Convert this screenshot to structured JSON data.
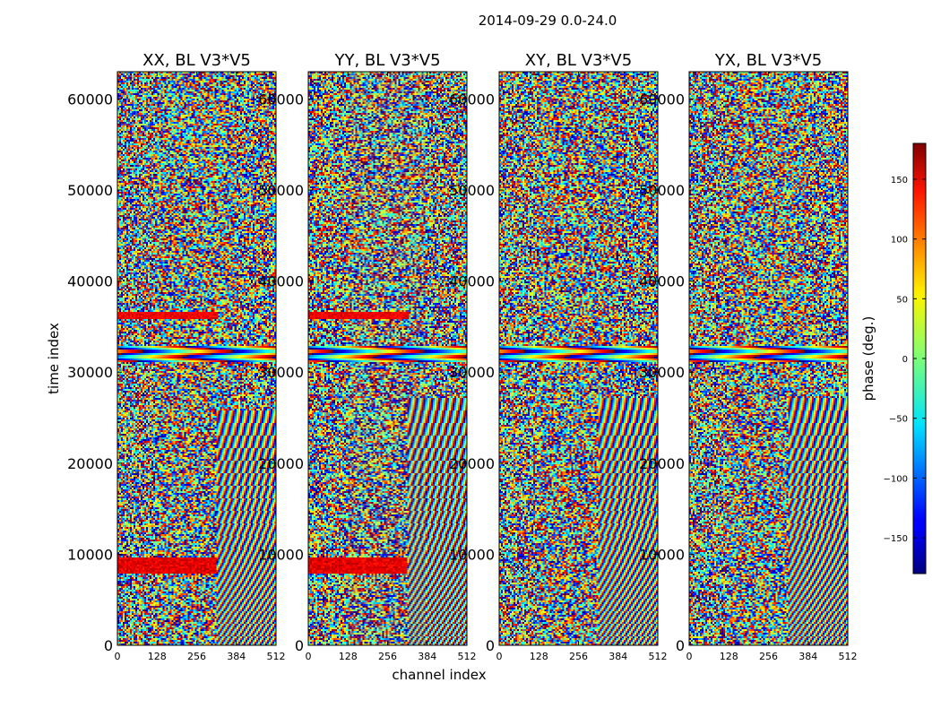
{
  "chart_data": {
    "type": "heatmap",
    "title": "2014-09-29 0.0-24.0",
    "xlabel": "channel index",
    "ylabel": "time index",
    "xlim": [
      0,
      512
    ],
    "ylim": [
      0,
      63000
    ],
    "xticks": [
      0,
      128,
      256,
      384,
      512
    ],
    "yticks": [
      0,
      10000,
      20000,
      30000,
      40000,
      50000,
      60000
    ],
    "panels": [
      {
        "title": "XX, BL V3*V5",
        "polarization": "XX"
      },
      {
        "title": "YY, BL V3*V5",
        "polarization": "YY"
      },
      {
        "title": "XY, BL V3*V5",
        "polarization": "XY"
      },
      {
        "title": "YX, BL V3*V5",
        "polarization": "YX"
      }
    ],
    "colorbar": {
      "label": "phase (deg.)",
      "range": [
        -180,
        180
      ],
      "ticks": [
        -150,
        -100,
        -50,
        0,
        50,
        100,
        150
      ],
      "tick_labels": [
        "−150",
        "−100",
        "−50",
        "0",
        "50",
        "100",
        "150"
      ],
      "colormap": "jet"
    }
  }
}
